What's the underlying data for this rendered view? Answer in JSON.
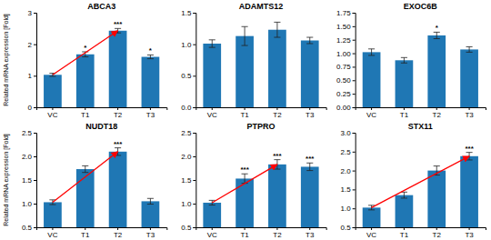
{
  "chart_data": [
    {
      "type": "bar",
      "title": "ABCA3",
      "ylabel": "Related mRNA expression [Fold]",
      "categories": [
        "VC",
        "T1",
        "T2",
        "T3"
      ],
      "values": [
        1.03,
        1.68,
        2.43,
        1.6
      ],
      "errors": [
        0.05,
        0.08,
        0.07,
        0.06
      ],
      "ylim": [
        0,
        3.0
      ],
      "yticks": [
        0,
        1,
        2,
        3
      ],
      "sig_labels": [
        null,
        "*",
        "***",
        "*"
      ],
      "arrow": {
        "from": "VC",
        "to": "T2",
        "from_value": 1.03,
        "to_value": 2.43,
        "color": "#ff0000"
      }
    },
    {
      "type": "bar",
      "title": "ADAMTS12",
      "categories": [
        "VC",
        "T1",
        "T2",
        "T3"
      ],
      "values": [
        1.01,
        1.13,
        1.23,
        1.06
      ],
      "errors": [
        0.06,
        0.15,
        0.12,
        0.05
      ],
      "ylim": [
        0.0,
        1.5
      ],
      "yticks": [
        {
          "value": 0.0,
          "label": "0.0"
        },
        0.5,
        {
          "value": 1.0,
          "label": "1.0"
        },
        1.5
      ]
    },
    {
      "type": "bar",
      "title": "EXOC6B",
      "categories": [
        "VC",
        "T1",
        "T2",
        "T3"
      ],
      "values": [
        1.02,
        0.87,
        1.33,
        1.07
      ],
      "errors": [
        0.06,
        0.05,
        0.06,
        0.05
      ],
      "ylim": [
        0.0,
        1.75
      ],
      "yticks": [
        {
          "value": 0.0,
          "label": "0.00"
        },
        0.25,
        {
          "value": 0.5,
          "label": "0.50"
        },
        0.75,
        {
          "value": 1.0,
          "label": "1.00"
        },
        1.25,
        {
          "value": 1.5,
          "label": "1.50"
        },
        1.75
      ],
      "sig_labels": [
        null,
        null,
        "*",
        null
      ]
    },
    {
      "type": "bar",
      "title": "NUDT18",
      "ylabel": "Related mRNA expression [Fold]",
      "categories": [
        "VC",
        "T1",
        "T2",
        "T3"
      ],
      "values": [
        1.03,
        1.73,
        2.1,
        1.05
      ],
      "errors": [
        0.05,
        0.07,
        0.08,
        0.06
      ],
      "ylim": [
        0.5,
        2.5
      ],
      "yticks": [
        0.5,
        {
          "value": 1.0,
          "label": "1.0"
        },
        1.5,
        {
          "value": 2.0,
          "label": "2.0"
        },
        2.5
      ],
      "sig_labels": [
        null,
        null,
        "***",
        null
      ],
      "arrow": {
        "from": "VC",
        "to": "T2",
        "from_value": 1.03,
        "to_value": 2.1,
        "color": "#ff0000"
      }
    },
    {
      "type": "bar",
      "title": "PTPRO",
      "categories": [
        "VC",
        "T1",
        "T2",
        "T3"
      ],
      "values": [
        1.02,
        1.53,
        1.83,
        1.78
      ],
      "errors": [
        0.05,
        0.1,
        0.1,
        0.08
      ],
      "ylim": [
        0.5,
        2.5
      ],
      "yticks": [
        0.5,
        {
          "value": 1.0,
          "label": "1.0"
        },
        1.5,
        {
          "value": 2.0,
          "label": "2.0"
        },
        2.5
      ],
      "sig_labels": [
        null,
        "***",
        "***",
        "***"
      ],
      "arrow": {
        "from": "VC",
        "to": "T2",
        "from_value": 1.02,
        "to_value": 1.83,
        "color": "#ff0000"
      }
    },
    {
      "type": "bar",
      "title": "STX11",
      "categories": [
        "VC",
        "T1",
        "T2",
        "T3"
      ],
      "values": [
        1.02,
        1.35,
        2.0,
        2.38
      ],
      "errors": [
        0.06,
        0.08,
        0.12,
        0.1
      ],
      "ylim": [
        0.5,
        3.0
      ],
      "yticks": [
        0.5,
        {
          "value": 1.0,
          "label": "1.0"
        },
        1.5,
        {
          "value": 2.0,
          "label": "2.0"
        },
        2.5,
        {
          "value": 3.0,
          "label": "3.0"
        }
      ],
      "sig_labels": [
        null,
        null,
        null,
        "***"
      ],
      "arrow": {
        "from": "VC",
        "to": "T3",
        "from_value": 1.02,
        "to_value": 2.38,
        "color": "#ff0000"
      }
    }
  ]
}
